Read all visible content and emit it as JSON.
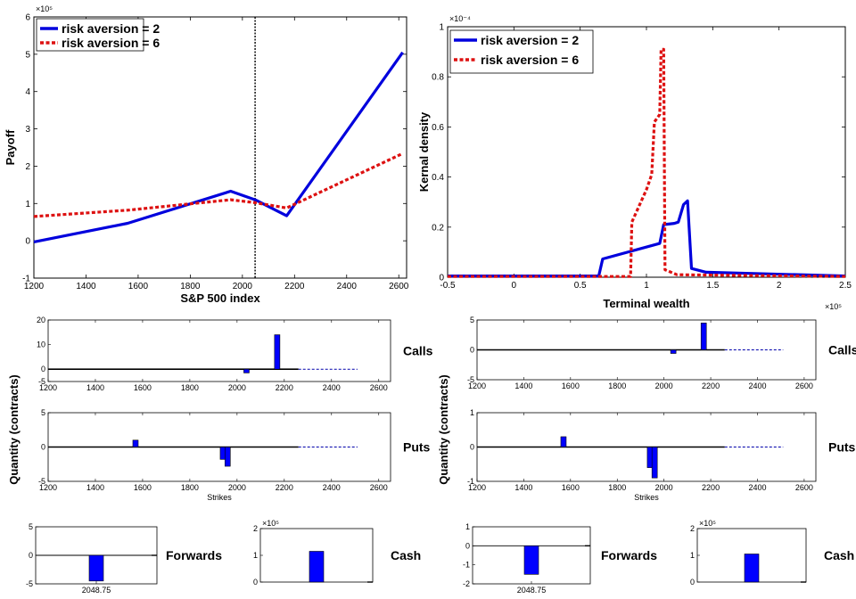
{
  "chart_data": [
    {
      "id": "payoff",
      "type": "line",
      "xlabel": "S&P 500 index",
      "ylabel": "Payoff",
      "xlim": [
        1200,
        2630
      ],
      "ylim": [
        -100000,
        600000
      ],
      "xticks": [
        1200,
        1400,
        1600,
        1800,
        2000,
        2200,
        2400,
        2600
      ],
      "yticks": [
        -100000,
        0,
        100000,
        200000,
        300000,
        400000,
        500000,
        600000
      ],
      "ytick_labels": [
        "-1",
        "0",
        "1",
        "2",
        "3",
        "4",
        "5",
        "6"
      ],
      "y_exponent": "×10⁵",
      "vline": 2048.75,
      "legend": [
        "risk aversion = 2",
        "risk aversion = 6"
      ],
      "series": [
        {
          "name": "risk aversion = 2",
          "color": "#0000dd",
          "style": "solid",
          "points": [
            [
              1200,
              -3000
            ],
            [
              1560,
              47000
            ],
            [
              1955,
              133000
            ],
            [
              2048.75,
              110000
            ],
            [
              2170,
              67000
            ],
            [
              2615,
              505000
            ]
          ]
        },
        {
          "name": "risk aversion = 6",
          "color": "#dd1111",
          "style": "dotted",
          "points": [
            [
              1200,
              65000
            ],
            [
              1560,
              82000
            ],
            [
              1955,
              110000
            ],
            [
              2048.75,
              102000
            ],
            [
              2170,
              88000
            ],
            [
              2615,
              234000
            ]
          ]
        }
      ]
    },
    {
      "id": "density",
      "type": "line",
      "xlabel": "Terminal wealth",
      "ylabel": "Kernal density",
      "xlim": [
        -50000,
        250000
      ],
      "ylim": [
        0,
        0.0001
      ],
      "xticks": [
        -50000,
        0,
        50000,
        100000,
        150000,
        200000,
        250000
      ],
      "xtick_labels": [
        "-0.5",
        "0",
        "0.5",
        "1",
        "1.5",
        "2",
        "2.5"
      ],
      "x_exponent": "×10⁵",
      "yticks": [
        0,
        2e-05,
        4e-05,
        6e-05,
        8e-05,
        0.0001
      ],
      "ytick_labels": [
        "0",
        "0.2",
        "0.4",
        "0.6",
        "0.8",
        "1"
      ],
      "y_exponent": "×10⁻⁴",
      "legend": [
        "risk aversion = 2",
        "risk aversion = 6"
      ],
      "series": [
        {
          "name": "risk aversion = 2",
          "color": "#0000dd",
          "style": "solid",
          "points": [
            [
              -50000,
              5e-07
            ],
            [
              64000,
              5e-07
            ],
            [
              67000,
              7.3e-06
            ],
            [
              110000,
              1.35e-05
            ],
            [
              113000,
              2.1e-05
            ],
            [
              121000,
              2.15e-05
            ],
            [
              124000,
              2.2e-05
            ],
            [
              128000,
              2.9e-05
            ],
            [
              131000,
              3.05e-05
            ],
            [
              134000,
              3.5e-06
            ],
            [
              145000,
              2e-06
            ],
            [
              250000,
              5e-07
            ]
          ]
        },
        {
          "name": "risk aversion = 6",
          "color": "#dd1111",
          "style": "dotted",
          "points": [
            [
              -50000,
              3e-07
            ],
            [
              88000,
              3e-07
            ],
            [
              89000,
              2.2e-05
            ],
            [
              100000,
              3.5e-05
            ],
            [
              104000,
              4.1e-05
            ],
            [
              106000,
              6.2e-05
            ],
            [
              110000,
              6.5e-05
            ],
            [
              111000,
              9.1e-05
            ],
            [
              113000,
              9.1e-05
            ],
            [
              114000,
              3e-06
            ],
            [
              123000,
              1e-06
            ],
            [
              250000,
              3e-07
            ]
          ]
        }
      ]
    },
    {
      "id": "calls-left",
      "type": "bar",
      "side_label": "Calls",
      "xlim": [
        1200,
        2650
      ],
      "ylim": [
        -5,
        20
      ],
      "xticks": [
        1200,
        1400,
        1600,
        1800,
        2000,
        2200,
        2400,
        2600
      ],
      "yticks": [
        -5,
        0,
        10,
        20
      ],
      "values": [
        [
          2040,
          -1.5
        ],
        [
          2170,
          14
        ]
      ],
      "dashed_from": 2260
    },
    {
      "id": "puts-left",
      "type": "bar",
      "side_label": "Puts",
      "xlabel": "Strikes",
      "xlim": [
        1200,
        2650
      ],
      "ylim": [
        -5,
        5
      ],
      "xticks": [
        1200,
        1400,
        1600,
        1800,
        2000,
        2200,
        2400,
        2600
      ],
      "yticks": [
        -5,
        0,
        5
      ],
      "values": [
        [
          1570,
          1
        ],
        [
          1940,
          -1.8
        ],
        [
          1960,
          -2.8
        ]
      ],
      "dashed_from": 2260
    },
    {
      "id": "calls-right",
      "type": "bar",
      "side_label": "Calls",
      "xlim": [
        1200,
        2650
      ],
      "ylim": [
        -5,
        5
      ],
      "xticks": [
        1200,
        1400,
        1600,
        1800,
        2000,
        2200,
        2400,
        2600
      ],
      "yticks": [
        -5,
        0,
        5
      ],
      "values": [
        [
          2040,
          -0.6
        ],
        [
          2170,
          4.5
        ]
      ],
      "dashed_from": 2260
    },
    {
      "id": "puts-right",
      "type": "bar",
      "side_label": "Puts",
      "xlabel": "Strikes",
      "xlim": [
        1200,
        2650
      ],
      "ylim": [
        -1,
        1
      ],
      "xticks": [
        1200,
        1400,
        1600,
        1800,
        2000,
        2200,
        2400,
        2600
      ],
      "yticks": [
        -1,
        0,
        1
      ],
      "values": [
        [
          1570,
          0.3
        ],
        [
          1940,
          -0.6
        ],
        [
          1960,
          -0.9
        ]
      ],
      "dashed_from": 2260
    },
    {
      "id": "forwards-left",
      "type": "bar",
      "side_label": "Forwards",
      "ylim": [
        -5,
        5
      ],
      "yticks": [
        -5,
        0,
        5
      ],
      "category": "2048.75",
      "value": -4.5
    },
    {
      "id": "cash-left",
      "type": "bar",
      "side_label": "Cash",
      "ylim": [
        0,
        200000
      ],
      "yticks": [
        0,
        100000,
        200000
      ],
      "ytick_labels": [
        "0",
        "1",
        "2"
      ],
      "y_exponent": "×10⁵",
      "value": 115000
    },
    {
      "id": "forwards-right",
      "type": "bar",
      "side_label": "Forwards",
      "ylim": [
        -2,
        1
      ],
      "yticks": [
        -2,
        -1,
        0,
        1
      ],
      "category": "2048.75",
      "value": -1.5
    },
    {
      "id": "cash-right",
      "type": "bar",
      "side_label": "Cash",
      "ylim": [
        0,
        200000
      ],
      "yticks": [
        0,
        100000,
        200000
      ],
      "ytick_labels": [
        "0",
        "1",
        "2"
      ],
      "y_exponent": "×10⁵",
      "value": 105000
    }
  ],
  "shared": {
    "ylabel_quantity": "Quantity (contracts)",
    "bar_color": "#0000ff"
  }
}
